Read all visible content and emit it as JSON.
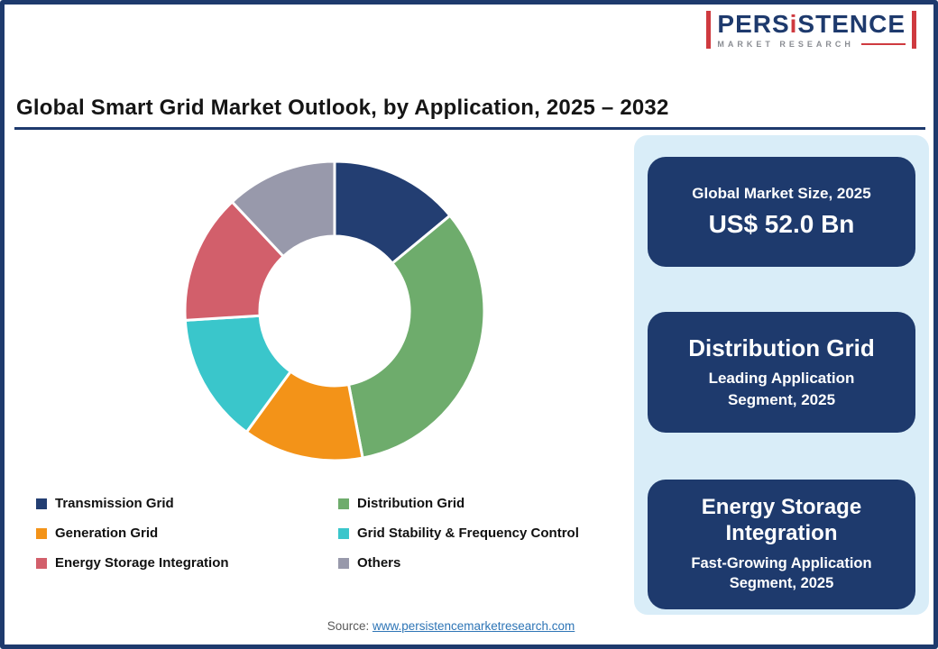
{
  "frame": {
    "border_color": "#1e3a6d"
  },
  "logo": {
    "part1": "PERS",
    "part2": "i",
    "part3": "STENCE",
    "subtitle": "MARKET RESEARCH",
    "accent_color": "#cf3a3f",
    "text_color": "#1e3a6d"
  },
  "title": "Global Smart Grid Market Outlook, by Application, 2025 – 2032",
  "chart_data": {
    "type": "pie",
    "donut": true,
    "title": "Global Smart Grid Market Outlook, by Application, 2025 – 2032",
    "start_angle_deg": 0,
    "direction": "clockwise",
    "categories": [
      "Transmission Grid",
      "Distribution Grid",
      "Generation Grid",
      "Grid Stability & Frequency Control",
      "Energy Storage Integration",
      "Others"
    ],
    "values": [
      14,
      33,
      13,
      14,
      14,
      12
    ],
    "colors": [
      "#233e72",
      "#6eac6c",
      "#f39318",
      "#3ac6cb",
      "#d25f6b",
      "#9899ab"
    ],
    "legend_position": "bottom",
    "inner_radius_ratio": 0.5
  },
  "panel": {
    "background": "#d9edf8",
    "card_color": "#1e3a6d",
    "cards": [
      {
        "line1": "Global Market Size, 2025",
        "line2": "US$ 52.0 Bn"
      },
      {
        "line1": "Distribution Grid",
        "line2": "Leading Application Segment, 2025"
      },
      {
        "line1": "Energy Storage Integration",
        "line2": "Fast-Growing Application Segment, 2025"
      }
    ]
  },
  "source": {
    "label": "Source: ",
    "link": "www.persistencemarketresearch.com"
  }
}
